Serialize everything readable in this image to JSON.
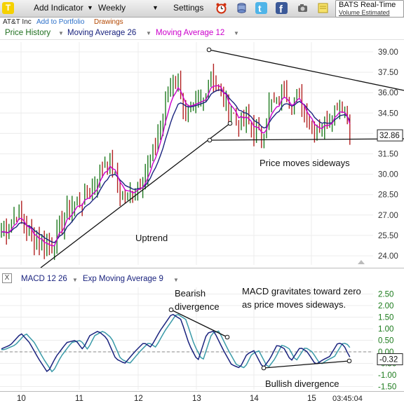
{
  "toolbar": {
    "add_indicator": "Add Indicator",
    "period": "Weekly",
    "settings": "Settings",
    "realtime_title": "BATS Real-Time",
    "realtime_sub": "Volume Estimated",
    "icons": [
      "alarm-clock-icon",
      "database-icon",
      "twitter-icon",
      "facebook-icon",
      "camera-icon",
      "sticky-note-icon"
    ]
  },
  "header": {
    "company": "AT&T Inc",
    "add_to_portfolio": "Add to Portfolio",
    "drawings": "Drawings",
    "legend_price": "Price History",
    "legend_ma26": "Moving Average 26",
    "legend_ma12": "Moving Average 12",
    "legend_arrow": "▼"
  },
  "colors": {
    "bull": "#1f7a1f",
    "bear": "#b22222",
    "ma26": "#1a237e",
    "ma12": "#cc00cc",
    "macd": "#1a237e",
    "signal": "#3a9aa8",
    "axis_text": "#1a7a1a"
  },
  "annotations": {
    "uptrend": "Uptrend",
    "sideways": "Price moves sideways",
    "bearish": "Bearish divergence",
    "macd_note": "MACD gravitates toward zero as price moves sideways.",
    "bullish": "Bullish divergence"
  },
  "macd_panel": {
    "close_box": "X",
    "label_macd": "MACD 12 26",
    "label_signal": "Exp Moving Average 9",
    "legend_arrow": "▼"
  },
  "time_readout": "03:45:04",
  "chart_data": [
    {
      "type": "candlestick",
      "title": "AT&T Inc",
      "series": [
        {
          "name": "Price History"
        },
        {
          "name": "Moving Average 26"
        },
        {
          "name": "Moving Average 12"
        }
      ],
      "x_ticks": [
        "10",
        "11",
        "12",
        "13",
        "14",
        "15"
      ],
      "y_ticks": [
        24.0,
        25.5,
        27.0,
        28.5,
        30.0,
        31.5,
        33.0,
        34.5,
        36.0,
        37.5,
        39.0
      ],
      "ylim": [
        23.3,
        39.6
      ],
      "last_value": "32.86",
      "last_value_num": 32.86,
      "grid": true
    },
    {
      "type": "line",
      "series": [
        {
          "name": "MACD 12 26"
        },
        {
          "name": "Exp Moving Average 9"
        }
      ],
      "y_ticks": [
        "2.50",
        "2.00",
        "1.50",
        "1.00",
        "0.50",
        "0.00",
        "-0.50",
        "-1.00",
        "-1.50"
      ],
      "y_tick_values": [
        2.5,
        2.0,
        1.5,
        1.0,
        0.5,
        0.0,
        -0.5,
        -1.0,
        -1.5
      ],
      "ylim": [
        -1.7,
        2.65
      ],
      "last_value": "-0.32",
      "last_value_num": -0.32,
      "grid": true
    }
  ]
}
